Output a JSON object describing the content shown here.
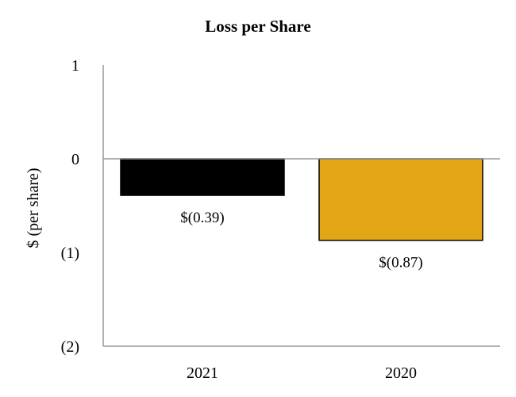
{
  "chart_data": {
    "type": "bar",
    "title": "Loss per Share",
    "ylabel": "$ (per share)",
    "xlabel": "",
    "categories": [
      "2021",
      "2020"
    ],
    "values": [
      -0.39,
      -0.87
    ],
    "data_labels": [
      "$(0.39)",
      "$(0.87)"
    ],
    "bar_colors": [
      "#000000",
      "#E3A615"
    ],
    "ylim": [
      -2,
      1
    ],
    "yticks": [
      1,
      0,
      -1,
      -2
    ],
    "ytick_labels": [
      "1",
      "0",
      "(1)",
      "(2)"
    ],
    "grid": false,
    "legend": "none"
  }
}
